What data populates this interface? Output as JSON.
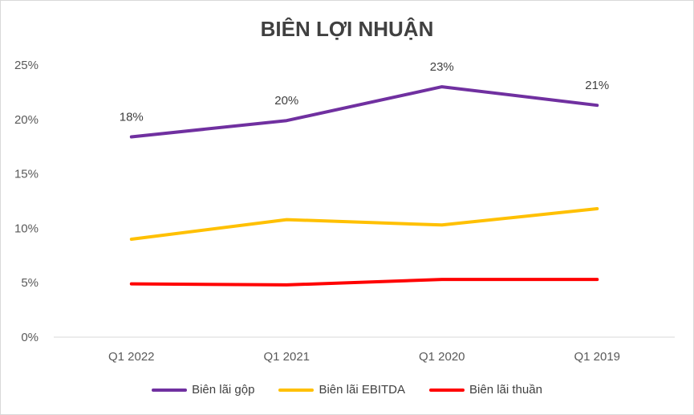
{
  "chart_data": {
    "type": "line",
    "title": "BIÊN LỢI NHUẬN",
    "categories": [
      "Q1 2022",
      "Q1 2021",
      "Q1 2020",
      "Q1 2019"
    ],
    "ylim": [
      0,
      25
    ],
    "yticks": [
      "0%",
      "5%",
      "10%",
      "15%",
      "20%",
      "25%"
    ],
    "grid": false,
    "legend_position": "bottom",
    "series": [
      {
        "name": "Biên lãi gộp",
        "color": "#7030a0",
        "values": [
          18.4,
          19.9,
          23.0,
          21.3
        ],
        "labels": [
          "18%",
          "20%",
          "23%",
          "21%"
        ]
      },
      {
        "name": "Biên lãi EBITDA",
        "color": "#ffc000",
        "values": [
          9.0,
          10.8,
          10.3,
          11.8
        ]
      },
      {
        "name": "Biên lãi thuần",
        "color": "#ff0000",
        "values": [
          4.9,
          4.8,
          5.3,
          5.3
        ]
      }
    ]
  }
}
